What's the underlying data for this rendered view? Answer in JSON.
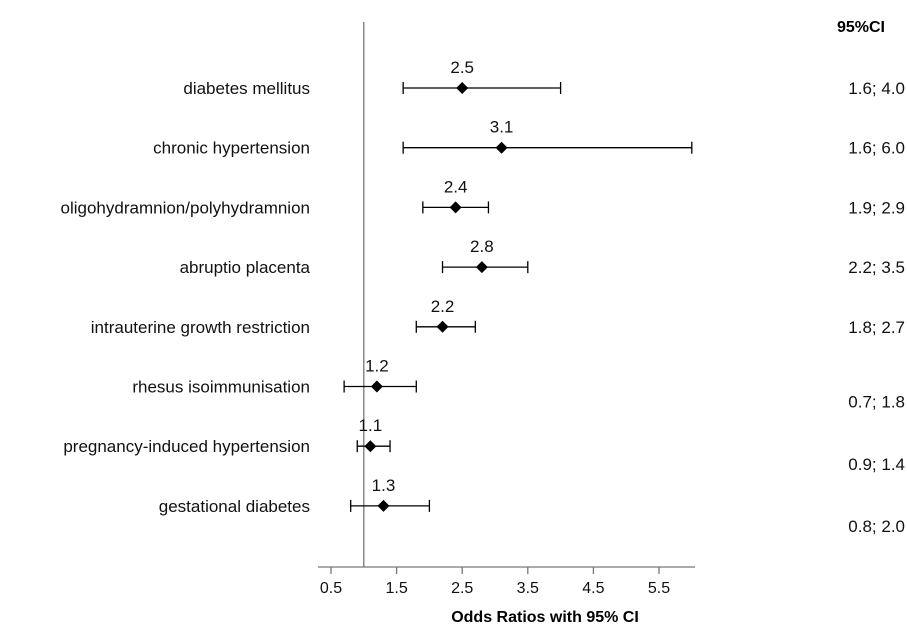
{
  "chart_data": {
    "type": "forest",
    "xlabel": "Odds Ratios with 95% CI",
    "ci_header": "95%CI",
    "reference_line": 1,
    "xlim": [
      0.5,
      6.1
    ],
    "xticks": [
      "0.5",
      "1.5",
      "2.5",
      "3.5",
      "4.5",
      "5.5"
    ],
    "xtick_values": [
      0.5,
      1.5,
      2.5,
      3.5,
      4.5,
      5.5
    ],
    "rows": [
      {
        "label": "diabetes mellitus",
        "or": 2.5,
        "or_label": "2.5",
        "lower": 1.6,
        "upper": 4.0,
        "ci_text": "1.6; 4.0"
      },
      {
        "label": "chronic hypertension",
        "or": 3.1,
        "or_label": "3.1",
        "lower": 1.6,
        "upper": 6.0,
        "ci_text": "1.6; 6.0"
      },
      {
        "label": "oligohydramnion/polyhydramnion",
        "or": 2.4,
        "or_label": "2.4",
        "lower": 1.9,
        "upper": 2.9,
        "ci_text": "1.9; 2.9"
      },
      {
        "label": "abruptio placenta",
        "or": 2.8,
        "or_label": "2.8",
        "lower": 2.2,
        "upper": 3.5,
        "ci_text": "2.2; 3.5"
      },
      {
        "label": "intrauterine growth restriction",
        "or": 2.2,
        "or_label": "2.2",
        "lower": 1.8,
        "upper": 2.7,
        "ci_text": "1.8; 2.7"
      },
      {
        "label": "rhesus isoimmunisation",
        "or": 1.2,
        "or_label": "1.2",
        "lower": 0.7,
        "upper": 1.8,
        "ci_text": "0.7; 1.8"
      },
      {
        "label": "pregnancy-induced hypertension",
        "or": 1.1,
        "or_label": "1.1",
        "lower": 0.9,
        "upper": 1.4,
        "ci_text": "0.9; 1.4"
      },
      {
        "label": "gestational diabetes",
        "or": 1.3,
        "or_label": "1.3",
        "lower": 0.8,
        "upper": 2.0,
        "ci_text": "0.8; 2.0"
      }
    ]
  }
}
